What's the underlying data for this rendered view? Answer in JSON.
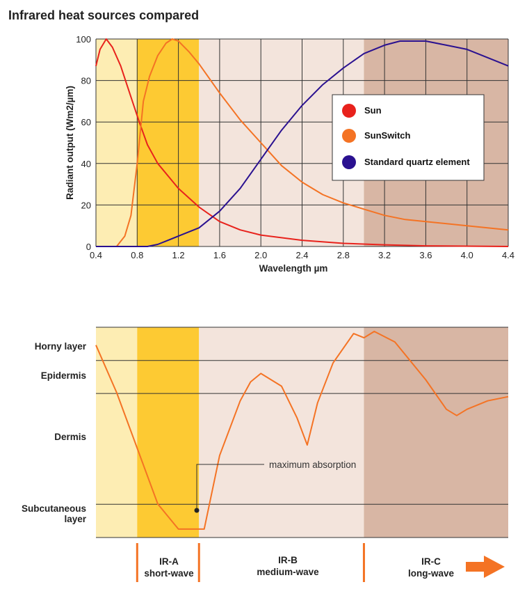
{
  "title": "Infrared heat sources compared",
  "colors": {
    "sun": "#e8221c",
    "sunswitch": "#f47324",
    "quartz": "#2a1190",
    "ira_light": "#fdedb3",
    "ira_dark": "#fdca33",
    "irb": "#f3e4dc",
    "irc": "#d8b6a4",
    "divider": "#f47324"
  },
  "chart_data": [
    {
      "type": "line",
      "xlabel": "Wavelength µm",
      "ylabel": "Radiant output (Wm2/µm)",
      "xlim": [
        0.4,
        4.4
      ],
      "ylim": [
        0,
        100
      ],
      "xticks": [
        "0.4",
        "0.8",
        "1.2",
        "1.6",
        "2.0",
        "2.4",
        "2.8",
        "3.2",
        "3.6",
        "4.0",
        "4.4"
      ],
      "yticks": [
        "0",
        "20",
        "40",
        "60",
        "80",
        "100"
      ],
      "grid": true,
      "legend": "top-right",
      "background_bands": [
        {
          "from": 0.4,
          "to": 0.8,
          "color": "#fdedb3"
        },
        {
          "from": 0.8,
          "to": 1.4,
          "color": "#fdca33"
        },
        {
          "from": 1.4,
          "to": 3.0,
          "color": "#f3e4dc"
        },
        {
          "from": 3.0,
          "to": 4.4,
          "color": "#d8b6a4"
        }
      ],
      "series": [
        {
          "name": "Sun",
          "color": "#e8221c",
          "points": [
            [
              0.4,
              87
            ],
            [
              0.44,
              95
            ],
            [
              0.5,
              100
            ],
            [
              0.56,
              96
            ],
            [
              0.64,
              87
            ],
            [
              0.74,
              72
            ],
            [
              0.82,
              60
            ],
            [
              0.9,
              49
            ],
            [
              1.0,
              40
            ],
            [
              1.2,
              28
            ],
            [
              1.4,
              19
            ],
            [
              1.6,
              12
            ],
            [
              1.8,
              8
            ],
            [
              2.0,
              5.5
            ],
            [
              2.4,
              3
            ],
            [
              2.8,
              1.5
            ],
            [
              3.2,
              0.8
            ],
            [
              3.6,
              0.3
            ],
            [
              4.4,
              0
            ]
          ]
        },
        {
          "name": "SunSwitch",
          "color": "#f47324",
          "points": [
            [
              0.4,
              0
            ],
            [
              0.6,
              0
            ],
            [
              0.68,
              5
            ],
            [
              0.74,
              15
            ],
            [
              0.8,
              40
            ],
            [
              0.86,
              70
            ],
            [
              0.92,
              82
            ],
            [
              1.0,
              92
            ],
            [
              1.08,
              98
            ],
            [
              1.14,
              100
            ],
            [
              1.2,
              99
            ],
            [
              1.3,
              94
            ],
            [
              1.4,
              88
            ],
            [
              1.6,
              74
            ],
            [
              1.8,
              61
            ],
            [
              2.0,
              50
            ],
            [
              2.2,
              39
            ],
            [
              2.4,
              31
            ],
            [
              2.6,
              25
            ],
            [
              2.8,
              21
            ],
            [
              3.0,
              18
            ],
            [
              3.2,
              15
            ],
            [
              3.4,
              13
            ],
            [
              3.6,
              12
            ],
            [
              4.0,
              10
            ],
            [
              4.4,
              8
            ]
          ]
        },
        {
          "name": "Standard quartz element",
          "color": "#2a1190",
          "points": [
            [
              0.4,
              0
            ],
            [
              0.9,
              0
            ],
            [
              1.0,
              1
            ],
            [
              1.1,
              3
            ],
            [
              1.2,
              5
            ],
            [
              1.4,
              9
            ],
            [
              1.6,
              17
            ],
            [
              1.8,
              28
            ],
            [
              2.0,
              42
            ],
            [
              2.2,
              56
            ],
            [
              2.4,
              68
            ],
            [
              2.6,
              78
            ],
            [
              2.8,
              86
            ],
            [
              3.0,
              93
            ],
            [
              3.2,
              97
            ],
            [
              3.35,
              99
            ],
            [
              3.6,
              99
            ],
            [
              3.8,
              97
            ],
            [
              4.0,
              95
            ],
            [
              4.2,
              91
            ],
            [
              4.4,
              87
            ]
          ]
        }
      ]
    },
    {
      "type": "line",
      "layers": [
        "Horny layer",
        "Epidermis",
        "Dermis",
        "Subcutaneous",
        "layer"
      ],
      "layer_boundaries": [
        0,
        0.158,
        0.315,
        0.842,
        1.0
      ],
      "annotation": "maximum absorption",
      "annotation_point": [
        1.39,
        0.96
      ],
      "series": [
        {
          "name": "SunSwitch",
          "color": "#f47324",
          "points": [
            [
              0.4,
              0.085
            ],
            [
              0.6,
              0.31
            ],
            [
              0.8,
              0.575
            ],
            [
              1.0,
              0.84
            ],
            [
              1.2,
              0.96
            ],
            [
              1.36,
              0.96
            ],
            [
              1.45,
              0.96
            ],
            [
              1.6,
              0.61
            ],
            [
              1.8,
              0.35
            ],
            [
              1.9,
              0.26
            ],
            [
              2.0,
              0.22
            ],
            [
              2.2,
              0.28
            ],
            [
              2.35,
              0.43
            ],
            [
              2.45,
              0.56
            ],
            [
              2.55,
              0.36
            ],
            [
              2.7,
              0.17
            ],
            [
              2.9,
              0.03
            ],
            [
              3.0,
              0.05
            ],
            [
              3.1,
              0.02
            ],
            [
              3.3,
              0.07
            ],
            [
              3.6,
              0.25
            ],
            [
              3.8,
              0.39
            ],
            [
              3.9,
              0.42
            ],
            [
              4.0,
              0.39
            ],
            [
              4.2,
              0.35
            ],
            [
              4.4,
              0.33
            ]
          ]
        }
      ]
    }
  ],
  "legend": {
    "entries": [
      "Sun",
      "SunSwitch",
      "Standard quartz element"
    ]
  },
  "skin_labels": {
    "horny": "Horny layer",
    "epidermis": "Epidermis",
    "dermis": "Dermis",
    "subcutaneous_1": "Subcutaneous",
    "subcutaneous_2": "layer",
    "annotation": "maximum absorption"
  },
  "bands": {
    "ira_name": "IR-A",
    "ira_desc": "short-wave",
    "irb_name": "IR-B",
    "irb_desc": "medium-wave",
    "irc_name": "IR-C",
    "irc_desc": "long-wave"
  }
}
